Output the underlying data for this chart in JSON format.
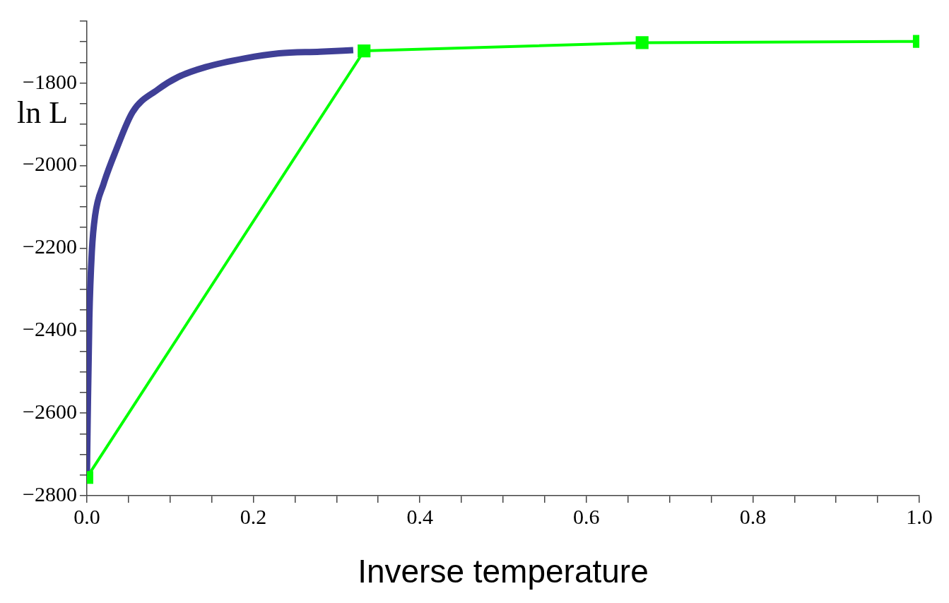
{
  "chart_data": {
    "type": "line",
    "xlabel": "Inverse temperature",
    "ylabel": "ln L",
    "xlim": [
      0,
      1
    ],
    "ylim": [
      -2800,
      -1650
    ],
    "xticks": [
      {
        "value": 0,
        "label": "0.0"
      },
      {
        "value": 0.05,
        "label": null
      },
      {
        "value": 0.1,
        "label": null
      },
      {
        "value": 0.15,
        "label": null
      },
      {
        "value": 0.2,
        "label": "0.2"
      },
      {
        "value": 0.25,
        "label": null
      },
      {
        "value": 0.3,
        "label": null
      },
      {
        "value": 0.35,
        "label": null
      },
      {
        "value": 0.4,
        "label": "0.4"
      },
      {
        "value": 0.45,
        "label": null
      },
      {
        "value": 0.5,
        "label": null
      },
      {
        "value": 0.55,
        "label": null
      },
      {
        "value": 0.6,
        "label": "0.6"
      },
      {
        "value": 0.65,
        "label": null
      },
      {
        "value": 0.7,
        "label": null
      },
      {
        "value": 0.75,
        "label": null
      },
      {
        "value": 0.8,
        "label": "0.8"
      },
      {
        "value": 0.85,
        "label": null
      },
      {
        "value": 0.9,
        "label": null
      },
      {
        "value": 0.95,
        "label": null
      },
      {
        "value": 1,
        "label": "1.0"
      }
    ],
    "yticks": [
      {
        "value": -2800,
        "label": "−2800"
      },
      {
        "value": -2750,
        "label": null
      },
      {
        "value": -2700,
        "label": null
      },
      {
        "value": -2650,
        "label": null
      },
      {
        "value": -2600,
        "label": "−2600"
      },
      {
        "value": -2550,
        "label": null
      },
      {
        "value": -2500,
        "label": null
      },
      {
        "value": -2450,
        "label": null
      },
      {
        "value": -2400,
        "label": "−2400"
      },
      {
        "value": -2350,
        "label": null
      },
      {
        "value": -2300,
        "label": null
      },
      {
        "value": -2250,
        "label": null
      },
      {
        "value": -2200,
        "label": "−2200"
      },
      {
        "value": -2150,
        "label": null
      },
      {
        "value": -2100,
        "label": null
      },
      {
        "value": -2050,
        "label": null
      },
      {
        "value": -2000,
        "label": "−2000"
      },
      {
        "value": -1950,
        "label": null
      },
      {
        "value": -1900,
        "label": null
      },
      {
        "value": -1850,
        "label": null
      },
      {
        "value": -1800,
        "label": "−1800"
      },
      {
        "value": -1750,
        "label": null
      },
      {
        "value": -1700,
        "label": null
      },
      {
        "value": -1650,
        "label": null
      }
    ],
    "grid": false,
    "legend": false,
    "series": [
      {
        "color": "#3f3f96",
        "marker": "none",
        "x": [
          0,
          0.001,
          0.003,
          0.006,
          0.01,
          0.02,
          0.035,
          0.055,
          0.085,
          0.11,
          0.143,
          0.19,
          0.231,
          0.28,
          0.32
        ],
        "values": [
          -2760,
          -2614,
          -2370,
          -2208,
          -2120,
          -2045,
          -1963,
          -1870,
          -1816,
          -1785,
          -1761,
          -1740,
          -1728,
          -1724,
          -1720
        ]
      },
      {
        "color": "#00ff00",
        "marker": "square",
        "x": [
          0,
          0.333,
          0.667,
          1
        ],
        "values": [
          -2756,
          -1722,
          -1702,
          -1699
        ]
      }
    ]
  }
}
